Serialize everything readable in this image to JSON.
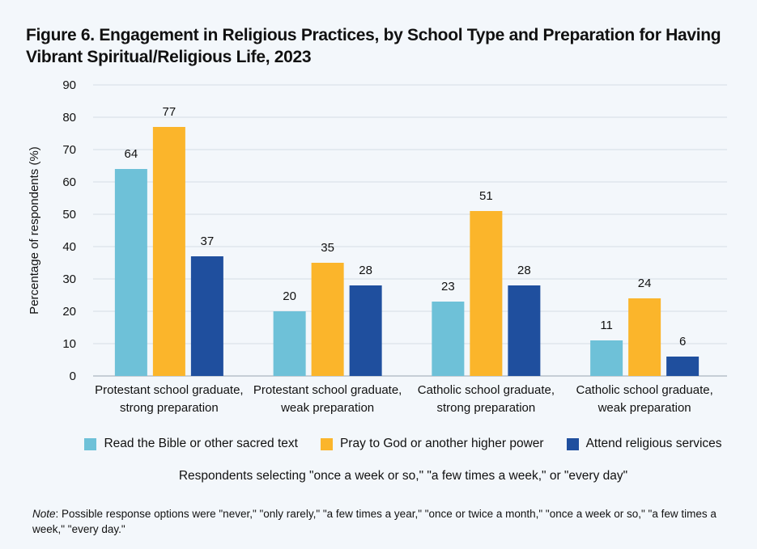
{
  "title": "Figure 6. Engagement in Religious Practices, by School Type and Preparation for Having Vibrant Spiritual/Religious Life, 2023",
  "chart_data": {
    "type": "bar",
    "ylabel": "Percentage of respondents (%)",
    "ylim": [
      0,
      90
    ],
    "yticks": [
      0,
      10,
      20,
      30,
      40,
      50,
      60,
      70,
      80,
      90
    ],
    "grid": true,
    "legend_position": "bottom",
    "categories": [
      [
        "Protestant school graduate,",
        "strong preparation"
      ],
      [
        "Protestant school graduate,",
        "weak preparation"
      ],
      [
        "Catholic school graduate,",
        "strong preparation"
      ],
      [
        "Catholic school graduate,",
        "weak preparation"
      ]
    ],
    "series": [
      {
        "name": "Read the Bible or other sacred text",
        "color": "#6ec1d8",
        "values": [
          64,
          20,
          23,
          11
        ]
      },
      {
        "name": "Pray to God or another higher power",
        "color": "#fbb52b",
        "values": [
          77,
          35,
          51,
          24
        ]
      },
      {
        "name": "Attend religious services",
        "color": "#1f4f9e",
        "values": [
          37,
          28,
          28,
          6
        ]
      }
    ]
  },
  "subnote": "Respondents selecting \"once a week or so,\" \"a few times a week,\" or \"every day\"",
  "note": {
    "label": "Note",
    "text": ": Possible response options were \"never,\" \"only rarely,\" \"a few times a year,\" \"once or twice a month,\" \"once a week or so,\" \"a few times a week,\" \"every day.\""
  }
}
